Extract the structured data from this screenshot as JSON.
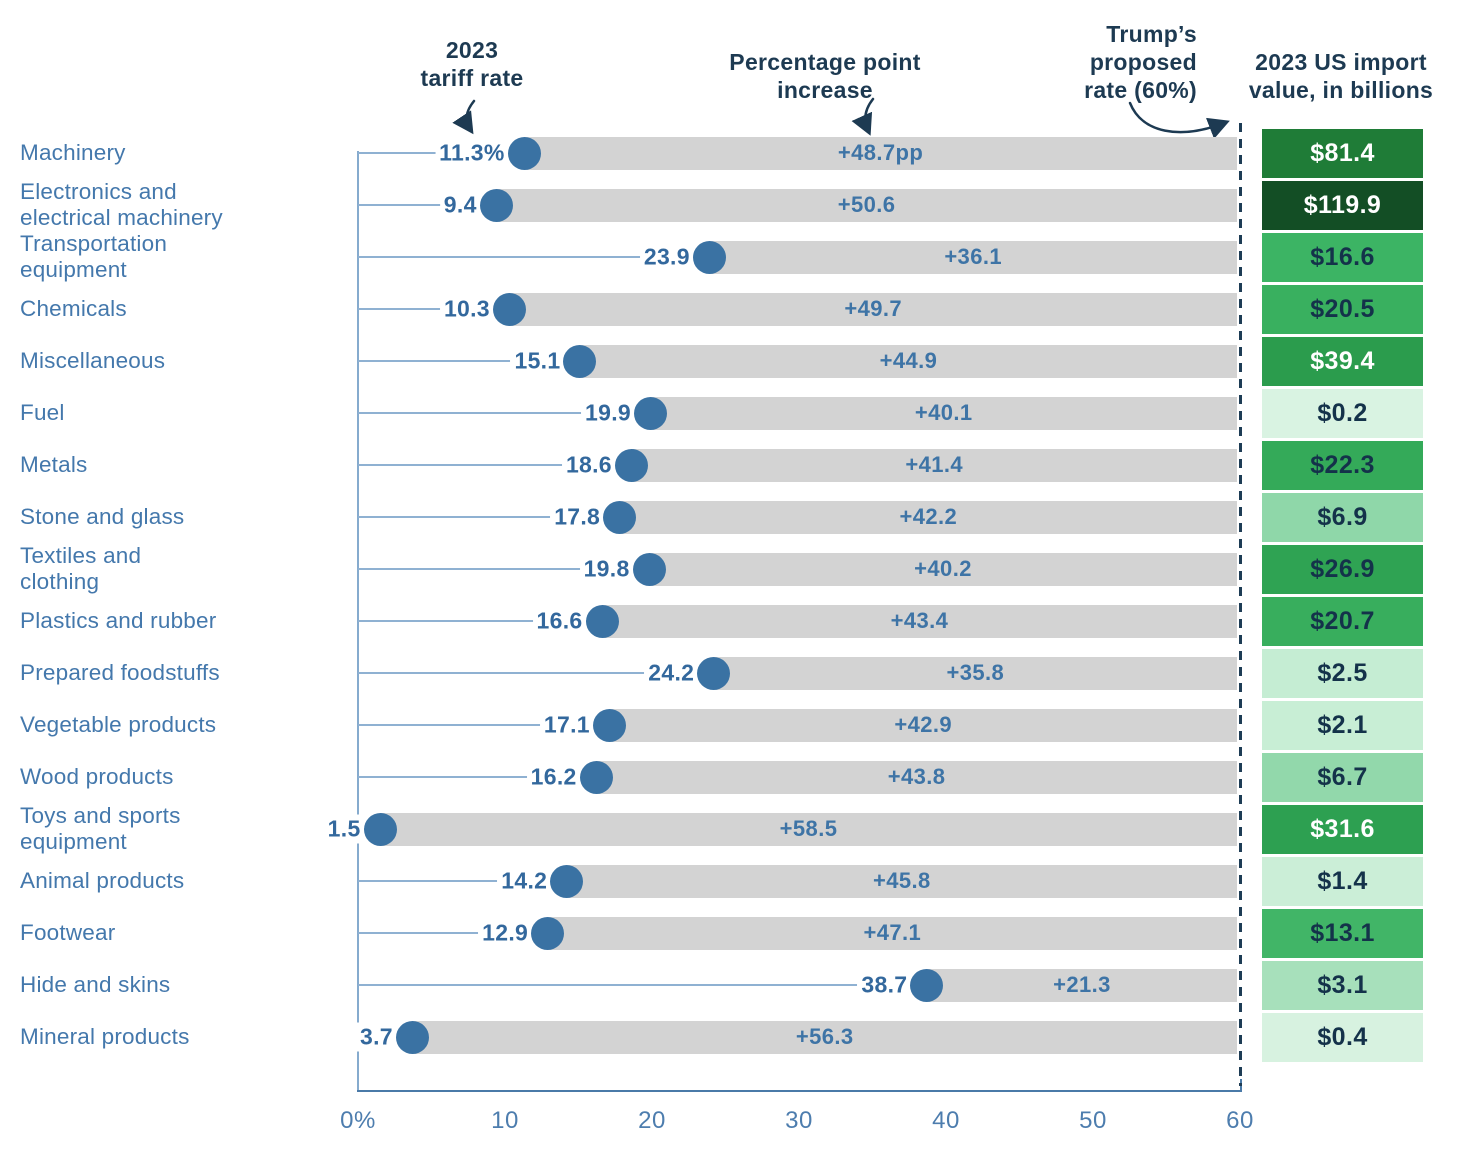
{
  "annotations": {
    "tariff_rate": [
      "2023",
      "tariff rate"
    ],
    "pp_increase": [
      "Percentage point",
      "increase"
    ],
    "proposed": [
      "Trump’s",
      "proposed",
      "rate (60%)"
    ],
    "import_value": [
      "2023 US import",
      "value, in billions"
    ]
  },
  "colors": {
    "bar": "#d3d3d3",
    "dot": "#3a72a3",
    "value_label": "#33689d",
    "pp_label": "#3e74a6",
    "category_label": "#4478ac",
    "axis": "#86abce",
    "baseline": "#4a7aa8",
    "dashed_line": "#1d3c55",
    "header_text": "#1d3a52",
    "box_text_dark": "#14324a",
    "box_text_light": "#ffffff"
  },
  "chart_data": {
    "type": "bar",
    "proposed_rate": 60,
    "x_axis": {
      "range": [
        0,
        60
      ],
      "values": [
        0,
        10,
        20,
        30,
        40,
        50,
        60
      ],
      "ticks": [
        "0%",
        "10",
        "20",
        "30",
        "40",
        "50",
        "60"
      ]
    },
    "rows": [
      {
        "category": "Machinery",
        "lines": [
          "Machinery"
        ],
        "tariff": 11.3,
        "tariff_label": "11.3%",
        "increase": 48.7,
        "increase_label": "+48.7pp",
        "import_billions": 81.4,
        "import_label": "$81.4",
        "box_bg": "#1f7c37",
        "box_fg": "light"
      },
      {
        "category": "Electronics and electrical machinery",
        "lines": [
          "Electronics and",
          "electrical machinery"
        ],
        "tariff": 9.4,
        "tariff_label": "9.4",
        "increase": 50.6,
        "increase_label": "+50.6",
        "import_billions": 119.9,
        "import_label": "$119.9",
        "box_bg": "#134e25",
        "box_fg": "light"
      },
      {
        "category": "Transportation equipment",
        "lines": [
          "Transportation",
          "equipment"
        ],
        "tariff": 23.9,
        "tariff_label": "23.9",
        "increase": 36.1,
        "increase_label": "+36.1",
        "import_billions": 16.6,
        "import_label": "$16.6",
        "box_bg": "#3cb464",
        "box_fg": "dark"
      },
      {
        "category": "Chemicals",
        "lines": [
          "Chemicals"
        ],
        "tariff": 10.3,
        "tariff_label": "10.3",
        "increase": 49.7,
        "increase_label": "+49.7",
        "import_billions": 20.5,
        "import_label": "$20.5",
        "box_bg": "#39b05f",
        "box_fg": "dark"
      },
      {
        "category": "Miscellaneous",
        "lines": [
          "Miscellaneous"
        ],
        "tariff": 15.1,
        "tariff_label": "15.1",
        "increase": 44.9,
        "increase_label": "+44.9",
        "import_billions": 39.4,
        "import_label": "$39.4",
        "box_bg": "#2b9c4d",
        "box_fg": "light"
      },
      {
        "category": "Fuel",
        "lines": [
          "Fuel"
        ],
        "tariff": 19.9,
        "tariff_label": "19.9",
        "increase": 40.1,
        "increase_label": "+40.1",
        "import_billions": 0.2,
        "import_label": "$0.2",
        "box_bg": "#d9f3e2",
        "box_fg": "dark"
      },
      {
        "category": "Metals",
        "lines": [
          "Metals"
        ],
        "tariff": 18.6,
        "tariff_label": "18.6",
        "increase": 41.4,
        "increase_label": "+41.4",
        "import_billions": 22.3,
        "import_label": "$22.3",
        "box_bg": "#34aa59",
        "box_fg": "dark"
      },
      {
        "category": "Stone and glass",
        "lines": [
          "Stone and glass"
        ],
        "tariff": 17.8,
        "tariff_label": "17.8",
        "increase": 42.2,
        "increase_label": "+42.2",
        "import_billions": 6.9,
        "import_label": "$6.9",
        "box_bg": "#8fd7a9",
        "box_fg": "dark"
      },
      {
        "category": "Textiles and clothing",
        "lines": [
          "Textiles and",
          "clothing"
        ],
        "tariff": 19.8,
        "tariff_label": "19.8",
        "increase": 40.2,
        "increase_label": "+40.2",
        "import_billions": 26.9,
        "import_label": "$26.9",
        "box_bg": "#2fa353",
        "box_fg": "dark"
      },
      {
        "category": "Plastics and rubber",
        "lines": [
          "Plastics and rubber"
        ],
        "tariff": 16.6,
        "tariff_label": "16.6",
        "increase": 43.4,
        "increase_label": "+43.4",
        "import_billions": 20.7,
        "import_label": "$20.7",
        "box_bg": "#38ae5d",
        "box_fg": "dark"
      },
      {
        "category": "Prepared foodstuffs",
        "lines": [
          "Prepared foodstuffs"
        ],
        "tariff": 24.2,
        "tariff_label": "24.2",
        "increase": 35.8,
        "increase_label": "+35.8",
        "import_billions": 2.5,
        "import_label": "$2.5",
        "box_bg": "#c5edd3",
        "box_fg": "dark"
      },
      {
        "category": "Vegetable products",
        "lines": [
          "Vegetable products"
        ],
        "tariff": 17.1,
        "tariff_label": "17.1",
        "increase": 42.9,
        "increase_label": "+42.9",
        "import_billions": 2.1,
        "import_label": "$2.1",
        "box_bg": "#c8eed5",
        "box_fg": "dark"
      },
      {
        "category": "Wood products",
        "lines": [
          "Wood products"
        ],
        "tariff": 16.2,
        "tariff_label": "16.2",
        "increase": 43.8,
        "increase_label": "+43.8",
        "import_billions": 6.7,
        "import_label": "$6.7",
        "box_bg": "#92d8ab",
        "box_fg": "dark"
      },
      {
        "category": "Toys and sports equipment",
        "lines": [
          "Toys and sports",
          "equipment"
        ],
        "tariff": 1.5,
        "tariff_label": "1.5",
        "increase": 58.5,
        "increase_label": "+58.5",
        "import_billions": 31.6,
        "import_label": "$31.6",
        "box_bg": "#2da051",
        "box_fg": "light"
      },
      {
        "category": "Animal products",
        "lines": [
          "Animal products"
        ],
        "tariff": 14.2,
        "tariff_label": "14.2",
        "increase": 45.8,
        "increase_label": "+45.8",
        "import_billions": 1.4,
        "import_label": "$1.4",
        "box_bg": "#cbeed7",
        "box_fg": "dark"
      },
      {
        "category": "Footwear",
        "lines": [
          "Footwear"
        ],
        "tariff": 12.9,
        "tariff_label": "12.9",
        "increase": 47.1,
        "increase_label": "+47.1",
        "import_billions": 13.1,
        "import_label": "$13.1",
        "box_bg": "#41b567",
        "box_fg": "dark"
      },
      {
        "category": "Hide and skins",
        "lines": [
          "Hide and skins"
        ],
        "tariff": 38.7,
        "tariff_label": "38.7",
        "increase": 21.3,
        "increase_label": "+21.3",
        "import_billions": 3.1,
        "import_label": "$3.1",
        "box_bg": "#a7e0bb",
        "box_fg": "dark"
      },
      {
        "category": "Mineral products",
        "lines": [
          "Mineral products"
        ],
        "tariff": 3.7,
        "tariff_label": "3.7",
        "increase": 56.3,
        "increase_label": "+56.3",
        "import_billions": 0.4,
        "import_label": "$0.4",
        "box_bg": "#d7f2e0",
        "box_fg": "dark"
      }
    ]
  }
}
